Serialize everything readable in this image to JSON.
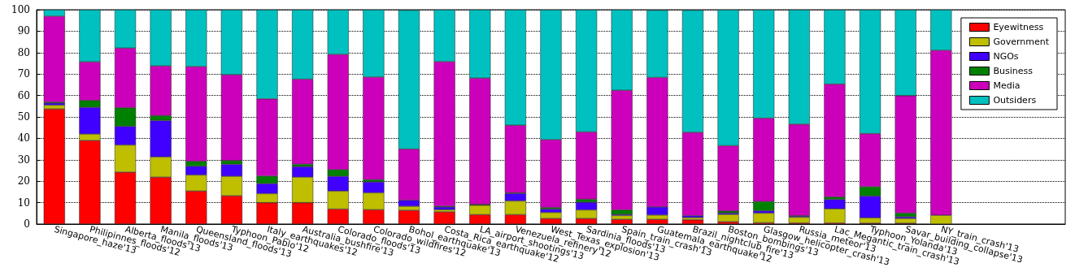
{
  "chart_data": {
    "type": "bar",
    "stacked": true,
    "categories": [
      "Singapore_haze'13",
      "Philipinnes_floods'12",
      "Alberta_floods'13",
      "Manila_floods'13",
      "Queensland_floods'13",
      "Typhoon_Pablo'12",
      "Italy_earthquakes'12",
      "Australia_bushfire'13",
      "Colorado_floods'13",
      "Colorado_wildfires'12",
      "Bohol_earthquake'13",
      "Costa_Rica_earthquake'12",
      "LA_airport_shootings'13",
      "Venezuela_refinery'12",
      "West_Texas_explosion'13",
      "Sardinia_floods'13",
      "Spain_train_crash'13",
      "Guatemala_earthquake'12",
      "Brazil_nightclub_fire'13",
      "Boston_bombings'13",
      "Glasgow_helicopter_crash'13",
      "Russia_meteor'13",
      "Lac_Megantic_train_crash'13",
      "Typhoon_Yolanda'13",
      "Savar_building_collapse'13",
      "NY_train_crash'13"
    ],
    "series": [
      {
        "name": "Eyewitness",
        "color": "#ff0000",
        "values": [
          53.7,
          39,
          24.2,
          21.9,
          15.4,
          13.2,
          10,
          10,
          7,
          6.7,
          6.4,
          5.7,
          4.4,
          4.4,
          2.6,
          2.6,
          2.2,
          2.2,
          2,
          1.1,
          0.6,
          0.5,
          0.5,
          0.4,
          0.4,
          0
        ]
      },
      {
        "name": "Government",
        "color": "#bfbf00",
        "values": [
          1.8,
          3,
          12.7,
          9.4,
          7.5,
          9.1,
          4.2,
          11.9,
          8.4,
          7.9,
          1.9,
          1,
          4.4,
          6.4,
          2.8,
          4,
          1.8,
          2,
          1,
          3.4,
          4.5,
          2.7,
          6.6,
          2.5,
          2.2,
          4.1
        ]
      },
      {
        "name": "NGOs",
        "color": "#4000ff",
        "values": [
          1,
          12.5,
          8.7,
          17,
          4.1,
          5.6,
          4.7,
          4.9,
          6.9,
          5.1,
          2.8,
          1.3,
          0.2,
          3.5,
          1.6,
          3.6,
          0.5,
          3.8,
          0.9,
          0.7,
          1.1,
          0.5,
          4.4,
          10.2,
          0.8,
          0
        ]
      },
      {
        "name": "Business",
        "color": "#008000",
        "values": [
          0.4,
          3.2,
          8.7,
          2.3,
          2.3,
          1.7,
          3.5,
          1.1,
          3.1,
          1,
          null,
          0.3,
          0.2,
          0.3,
          0.7,
          1.4,
          2.1,
          null,
          null,
          0.9,
          4.3,
          0.2,
          1.1,
          4.3,
          1.7,
          0
        ]
      },
      {
        "name": "Media",
        "color": "#cc00bb",
        "values": [
          40.1,
          18,
          27.8,
          23.2,
          44.2,
          40.1,
          36,
          39.7,
          53.8,
          47.9,
          23.9,
          67.5,
          58.9,
          31.5,
          31.7,
          31.4,
          55.8,
          60.4,
          38.9,
          30.5,
          38.9,
          42.7,
          52.7,
          24.8,
          54.8,
          77
        ]
      },
      {
        "name": "Outsiders",
        "color": "#00c0c0",
        "values": [
          3,
          24.3,
          17.9,
          26.2,
          26.5,
          30.3,
          41.6,
          32.4,
          20.8,
          31.4,
          64.8,
          24.2,
          31.9,
          53.9,
          60.6,
          57,
          37.6,
          31.4,
          57,
          63.4,
          50.6,
          53.4,
          34.7,
          57.8,
          40.1,
          18.9
        ]
      }
    ],
    "ylim": [
      0,
      100
    ],
    "yticks": [
      0,
      10,
      20,
      30,
      40,
      50,
      60,
      70,
      80,
      90,
      100
    ],
    "grid": "y",
    "legend": "top right"
  }
}
